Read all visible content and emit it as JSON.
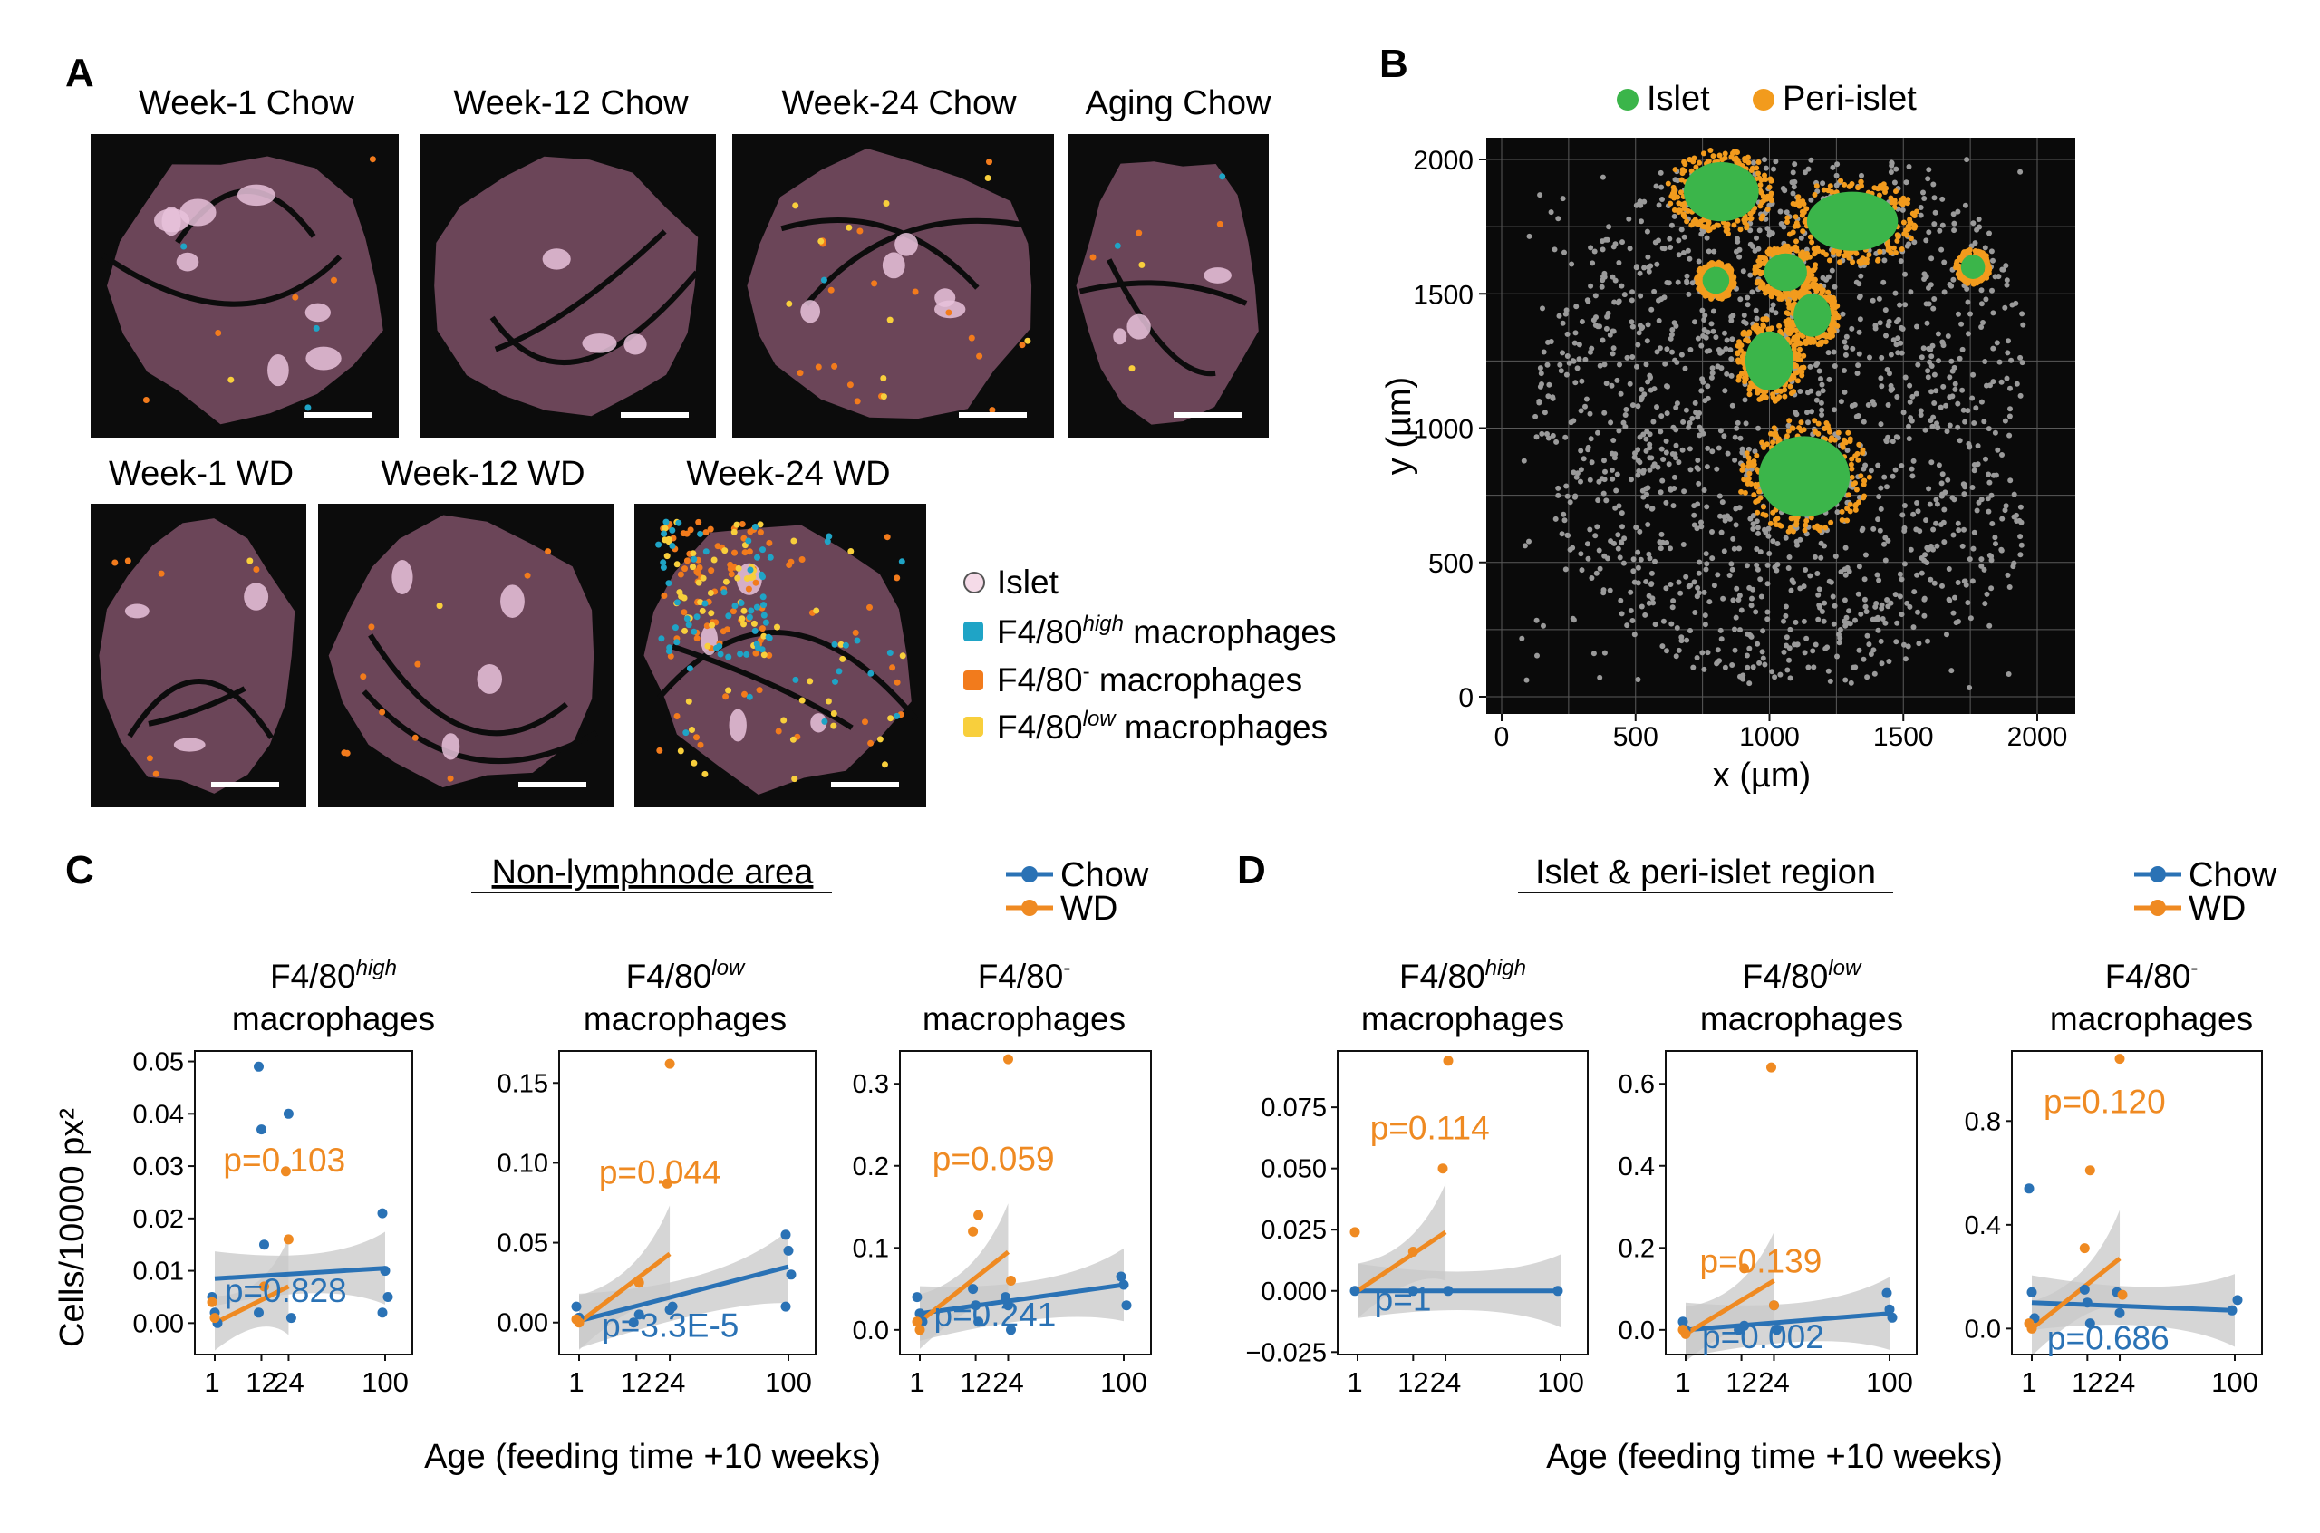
{
  "panel_letters": {
    "a": "A",
    "b": "B",
    "c": "C",
    "d": "D"
  },
  "panel_a": {
    "top_titles": [
      "Week-1 Chow",
      "Week-12 Chow",
      "Week-24 Chow",
      "Aging Chow"
    ],
    "bottom_titles": [
      "Week-1 WD",
      "Week-12 WD",
      "Week-24 WD"
    ],
    "legend": {
      "islet": "Islet",
      "high_prefix": "F4/80",
      "high_sup": "high",
      "high_suffix": " macrophages",
      "neg_prefix": "F4/80",
      "neg_sup": "-",
      "neg_suffix": " macrophages",
      "low_prefix": "F4/80",
      "low_sup": "low",
      "low_suffix": " macrophages"
    },
    "colors": {
      "tissue": "#6b4558",
      "islet": "#e8c2da",
      "background": "#0c0c0c",
      "high": "#1fa4c6",
      "neg": "#f27b1c",
      "low": "#f8cf3c"
    }
  },
  "panel_b": {
    "legend_islet": "Islet",
    "legend_peri": "Peri-islet",
    "xlabel": "x (µm)",
    "ylabel": "y (µm)",
    "xticks": [
      "0",
      "500",
      "1000",
      "1500",
      "2000"
    ],
    "yticks": [
      "0",
      "500",
      "1000",
      "1500",
      "2000"
    ],
    "colors": {
      "islet": "#3bb54a",
      "peri": "#f29b1d",
      "other": "#9a9a9a",
      "background": "#0a0a0a"
    }
  },
  "panel_c": {
    "header": "Non-lymphnode area",
    "legend_chow": "Chow",
    "legend_wd": "WD",
    "ylabel": "Cells/10000 px²",
    "xlabel": "Age (feeding time +10 weeks)",
    "subplots": [
      {
        "title_prefix": "F4/80",
        "title_sup": "high",
        "title_line2": "macrophages",
        "p_wd": "p=0.103",
        "p_chow": "p=0.828",
        "yticks": [
          "0.05",
          "0.04",
          "0.03",
          "0.02",
          "0.01",
          "0.00"
        ],
        "xticks": [
          "1",
          "12",
          "24",
          "100"
        ]
      },
      {
        "title_prefix": "F4/80",
        "title_sup": "low",
        "title_line2": "macrophages",
        "p_wd": "p=0.044",
        "p_chow": "p=3.3E-5",
        "yticks": [
          "0.15",
          "0.10",
          "0.05",
          "0.00"
        ],
        "xticks": [
          "1",
          "12",
          "24",
          "100"
        ]
      },
      {
        "title_prefix": "F4/80",
        "title_sup": "-",
        "title_line2": "macrophages",
        "p_wd": "p=0.059",
        "p_chow": "p=0.241",
        "yticks": [
          "0.3",
          "0.2",
          "0.1",
          "0.0"
        ],
        "xticks": [
          "1",
          "12",
          "24",
          "100"
        ]
      }
    ]
  },
  "panel_d": {
    "header": "Islet & peri-islet region",
    "legend_chow": "Chow",
    "legend_wd": "WD",
    "xlabel": "Age (feeding time +10 weeks)",
    "subplots": [
      {
        "title_prefix": "F4/80",
        "title_sup": "high",
        "title_line2": "macrophages",
        "p_wd": "p=0.114",
        "p_chow": "p=1",
        "yticks": [
          "0.075",
          "0.050",
          "0.025",
          "0.000",
          "−0.025"
        ],
        "xticks": [
          "1",
          "12",
          "24",
          "100"
        ]
      },
      {
        "title_prefix": "F4/80",
        "title_sup": "low",
        "title_line2": "macrophages",
        "p_wd": "p=0.139",
        "p_chow": "p=0.002",
        "yticks": [
          "0.6",
          "0.4",
          "0.2",
          "0.0"
        ],
        "xticks": [
          "1",
          "12",
          "24",
          "100"
        ]
      },
      {
        "title_prefix": "F4/80",
        "title_sup": "-",
        "title_line2": "macrophages",
        "p_wd": "p=0.120",
        "p_chow": "p=0.686",
        "yticks": [
          "0.8",
          "0.4",
          "0.0"
        ],
        "xticks": [
          "1",
          "12",
          "24",
          "100"
        ]
      }
    ]
  },
  "colors": {
    "chow": "#2a72b5",
    "wd": "#ef8a22",
    "band": "#c8c8c8"
  },
  "chart_data": [
    {
      "type": "scatter",
      "title": "Non-lymphnode area — F4/80 high macrophages",
      "xlabel": "Age (feeding time +10 weeks)",
      "ylabel": "Cells/10000 px²",
      "ylim": [
        -0.006,
        0.052
      ],
      "series": [
        {
          "name": "Chow",
          "x": [
            1,
            1,
            1,
            12,
            12,
            12,
            12,
            24,
            24,
            100,
            100,
            100,
            100
          ],
          "y": [
            0.005,
            0.002,
            0.0,
            0.049,
            0.037,
            0.015,
            0.002,
            0.04,
            0.001,
            0.021,
            0.01,
            0.005,
            0.002
          ],
          "fit": [
            [
              1,
              0.0085
            ],
            [
              100,
              0.0105
            ]
          ]
        },
        {
          "name": "WD",
          "x": [
            1,
            1,
            12,
            24,
            24
          ],
          "y": [
            0.004,
            0.001,
            0.007,
            0.029,
            0.016
          ],
          "fit": [
            [
              1,
              0.0
            ],
            [
              24,
              0.007
            ]
          ]
        }
      ]
    },
    {
      "type": "scatter",
      "title": "Non-lymphnode area — F4/80 low macrophages",
      "xlabel": "Age (feeding time +10 weeks)",
      "ylabel": "Cells/10000 px²",
      "ylim": [
        -0.02,
        0.17
      ],
      "series": [
        {
          "name": "Chow",
          "x": [
            1,
            1,
            12,
            12,
            24,
            24,
            100,
            100,
            100,
            100
          ],
          "y": [
            0.01,
            0.003,
            0.005,
            0.0,
            0.008,
            0.01,
            0.055,
            0.045,
            0.03,
            0.01
          ],
          "fit": [
            [
              1,
              0.001
            ],
            [
              100,
              0.035
            ]
          ]
        },
        {
          "name": "WD",
          "x": [
            1,
            1,
            12,
            24,
            24
          ],
          "y": [
            0.002,
            0.0,
            0.025,
            0.087,
            0.162
          ],
          "fit": [
            [
              1,
              0.0
            ],
            [
              24,
              0.043
            ]
          ]
        }
      ]
    },
    {
      "type": "scatter",
      "title": "Non-lymphnode area — F4/80- macrophages",
      "xlabel": "Age (feeding time +10 weeks)",
      "ylabel": "Cells/10000 px²",
      "ylim": [
        -0.03,
        0.34
      ],
      "series": [
        {
          "name": "Chow",
          "x": [
            1,
            1,
            1,
            12,
            12,
            12,
            24,
            24,
            24,
            100,
            100,
            100
          ],
          "y": [
            0.04,
            0.02,
            0.01,
            0.05,
            0.03,
            0.01,
            0.04,
            0.03,
            0.0,
            0.065,
            0.055,
            0.03
          ],
          "fit": [
            [
              1,
              0.02
            ],
            [
              100,
              0.055
            ]
          ]
        },
        {
          "name": "WD",
          "x": [
            1,
            1,
            12,
            12,
            24,
            24
          ],
          "y": [
            0.01,
            0.0,
            0.14,
            0.12,
            0.33,
            0.06
          ],
          "fit": [
            [
              1,
              0.01
            ],
            [
              24,
              0.095
            ]
          ]
        }
      ]
    },
    {
      "type": "scatter",
      "title": "Islet & peri-islet region — F4/80 high macrophages",
      "xlabel": "Age (feeding time +10 weeks)",
      "ylim": [
        -0.026,
        0.098
      ],
      "series": [
        {
          "name": "Chow",
          "x": [
            1,
            12,
            24,
            100
          ],
          "y": [
            0.0,
            0.0,
            0.0,
            0.0
          ],
          "fit": [
            [
              1,
              0.0
            ],
            [
              100,
              0.0
            ]
          ]
        },
        {
          "name": "WD",
          "x": [
            1,
            12,
            24,
            24
          ],
          "y": [
            0.024,
            0.016,
            0.094,
            0.05
          ],
          "fit": [
            [
              1,
              0.0
            ],
            [
              24,
              0.024
            ]
          ]
        }
      ]
    },
    {
      "type": "scatter",
      "title": "Islet & peri-islet region — F4/80 low macrophages",
      "xlabel": "Age (feeding time +10 weeks)",
      "ylim": [
        -0.06,
        0.68
      ],
      "series": [
        {
          "name": "Chow",
          "x": [
            1,
            1,
            12,
            12,
            24,
            24,
            100,
            100,
            100
          ],
          "y": [
            0.02,
            0.0,
            0.01,
            0.0,
            0.06,
            0.0,
            0.09,
            0.05,
            0.03
          ],
          "fit": [
            [
              1,
              0.0
            ],
            [
              100,
              0.04
            ]
          ]
        },
        {
          "name": "WD",
          "x": [
            1,
            1,
            12,
            24,
            24
          ],
          "y": [
            0.0,
            -0.01,
            0.15,
            0.64,
            0.06
          ],
          "fit": [
            [
              1,
              -0.01
            ],
            [
              24,
              0.12
            ]
          ]
        }
      ]
    },
    {
      "type": "scatter",
      "title": "Islet & peri-islet region — F4/80- macrophages",
      "xlabel": "Age (feeding time +10 weeks)",
      "ylim": [
        -0.1,
        1.07
      ],
      "series": [
        {
          "name": "Chow",
          "x": [
            1,
            1,
            1,
            12,
            12,
            12,
            24,
            24,
            100,
            100
          ],
          "y": [
            0.54,
            0.14,
            0.04,
            0.15,
            0.1,
            0.02,
            0.14,
            0.06,
            0.11,
            0.07
          ],
          "fit": [
            [
              1,
              0.1
            ],
            [
              100,
              0.07
            ]
          ]
        },
        {
          "name": "WD",
          "x": [
            1,
            1,
            12,
            12,
            24,
            24
          ],
          "y": [
            0.02,
            0.0,
            0.61,
            0.31,
            1.04,
            0.13
          ],
          "fit": [
            [
              1,
              0.0
            ],
            [
              24,
              0.27
            ]
          ]
        }
      ]
    }
  ]
}
